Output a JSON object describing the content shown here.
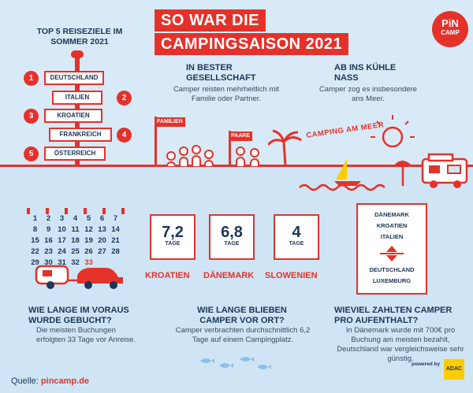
{
  "title": {
    "line1": "SO WAR DIE",
    "line2": "CAMPINGSAISON 2021"
  },
  "logo": {
    "line1": "PiN",
    "line2": "CAMP"
  },
  "top5": {
    "heading": "TOP 5 REISEZIELE IM SOMMER 2021",
    "items": [
      {
        "rank": "1",
        "name": "DEUTSCHLAND"
      },
      {
        "rank": "2",
        "name": "ITALIEN"
      },
      {
        "rank": "3",
        "name": "KROATIEN"
      },
      {
        "rank": "4",
        "name": "FRANKREICH"
      },
      {
        "rank": "5",
        "name": "ÖSTERREICH"
      }
    ]
  },
  "company": {
    "heading": "IN BESTER GESELLSCHAFT",
    "text": "Camper reisten mehrheitlich mit Familie oder Partner.",
    "flag_families": "FAMILIEN",
    "flag_couples": "PAARE"
  },
  "sea": {
    "heading": "AB INS KÜHLE NASS",
    "text": "Camper zog es insbesondere ans Meer.",
    "arc_label": "CAMPING AM MEER"
  },
  "calendar": {
    "days": [
      "1",
      "2",
      "3",
      "4",
      "5",
      "6",
      "7",
      "8",
      "9",
      "10",
      "11",
      "12",
      "13",
      "14",
      "15",
      "16",
      "17",
      "18",
      "19",
      "20",
      "21",
      "22",
      "23",
      "24",
      "25",
      "26",
      "27",
      "28",
      "29",
      "30",
      "31",
      "32",
      "33"
    ]
  },
  "stay": {
    "cards": [
      {
        "value": "7,2",
        "unit": "TAGE",
        "country": "KROATIEN"
      },
      {
        "value": "6,8",
        "unit": "TAGE",
        "country": "DÄNEMARK"
      },
      {
        "value": "4",
        "unit": "TAGE",
        "country": "SLOWENIEN"
      }
    ]
  },
  "price_scroll": {
    "top": [
      "DÄNEMARK",
      "KROATIEN",
      "ITALIEN"
    ],
    "bottom": [
      "DEUTSCHLAND",
      "LUXEMBURG"
    ]
  },
  "questions": {
    "booking": {
      "heading": "WIE LANGE IM VORAUS WURDE GEBUCHT?",
      "text": "Die meisten Buchungen erfolgten 33 Tage vor Anreise."
    },
    "duration": {
      "heading": "WIE LANGE BLIEBEN CAMPER VOR ORT?",
      "text": "Camper verbrachten durchschnittlich 6,2 Tage auf einem Campingplatz."
    },
    "spend": {
      "heading": "WIEVIEL ZAHLTEN CAMPER PRO AUFENTHALT?",
      "text": "In Dänemark wurde mit 700€ pro Buchung am meisten bezahlt, Deutschland war vergleichsweise sehr günstig."
    }
  },
  "footer": {
    "source_label": "Quelle:",
    "source_site": "pincamp.de",
    "powered": "powered by",
    "adac": "ADAC"
  },
  "colors": {
    "accent": "#e4322b",
    "navy": "#1d3557",
    "sky": "#d8eaf7"
  }
}
